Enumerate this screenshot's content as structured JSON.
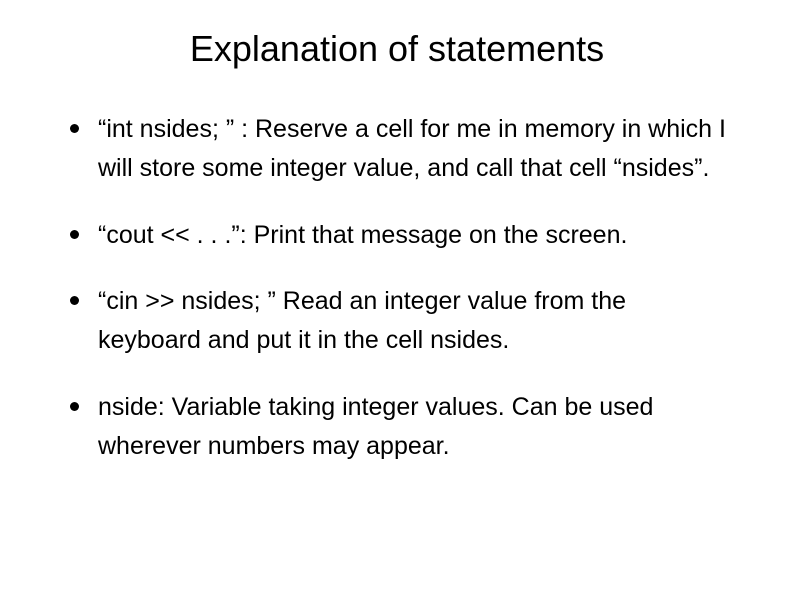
{
  "title": "Explanation of statements",
  "bullets": [
    "“int nsides; ” : Reserve a cell for me in memory in which I will store some integer value, and call that cell “nsides”.",
    "“cout << . . .”: Print that message on the screen.",
    "“cin >> nsides; ”  Read an integer value from the keyboard and put it in the cell nsides.",
    "nside:  Variable taking integer values.  Can be used wherever numbers may appear."
  ],
  "colors": {
    "background": "#ffffff",
    "text": "#000000",
    "bullet": "#000000"
  },
  "typography": {
    "title_fontsize": 36,
    "body_fontsize": 25,
    "font_family": "Arial"
  }
}
